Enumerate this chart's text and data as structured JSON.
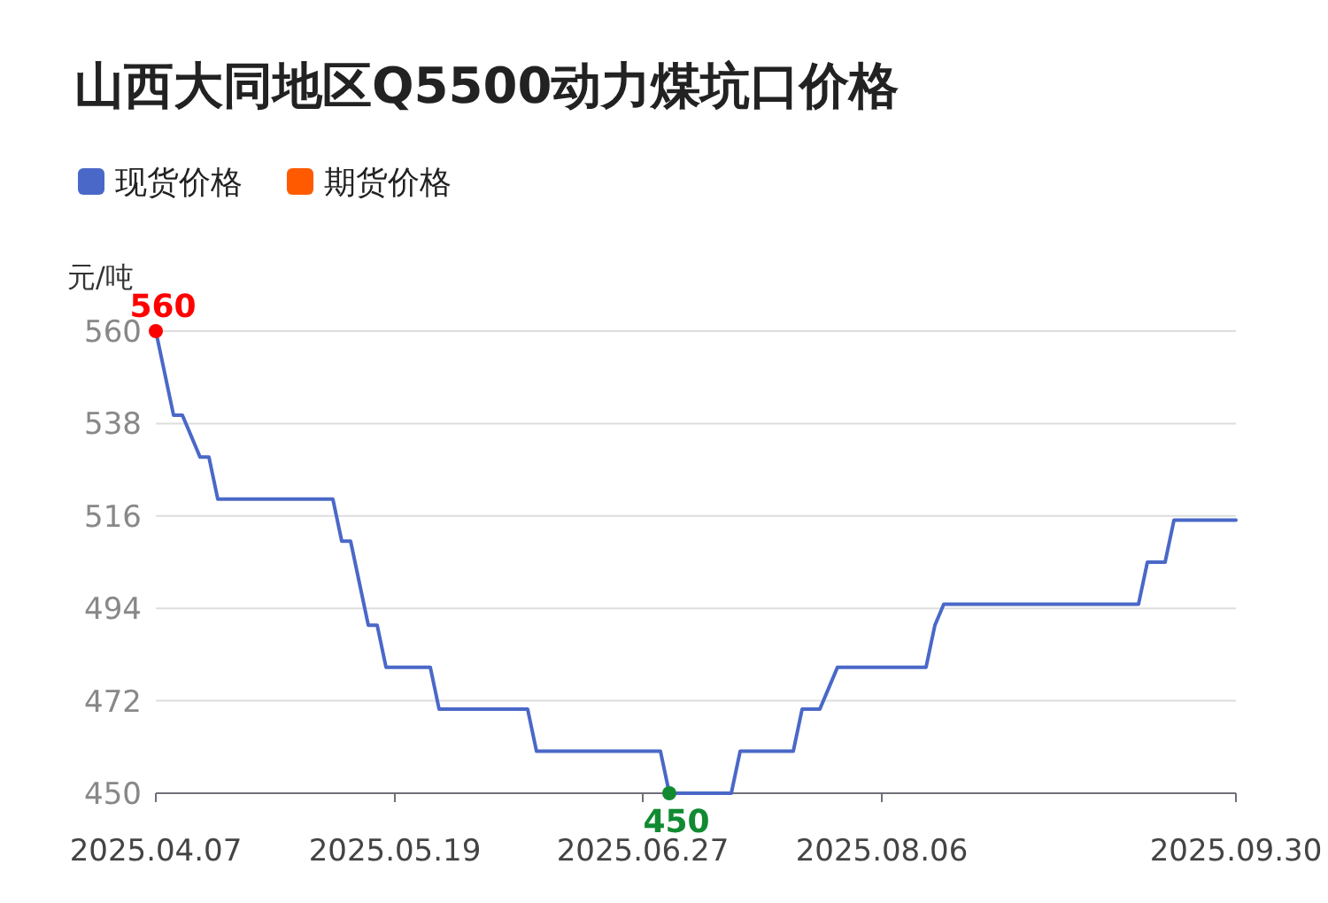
{
  "chart_data": {
    "type": "line",
    "title": "山西大同地区Q5500动力煤坑口价格",
    "ylabel": "元/吨",
    "categories": [
      "2025.04.07",
      null,
      null,
      null,
      null,
      null,
      null,
      null,
      null,
      null,
      null,
      null,
      null,
      null,
      null,
      null,
      null,
      null,
      null,
      null,
      null,
      null,
      null,
      null,
      null,
      null,
      null,
      "2025.05.19",
      null,
      null,
      null,
      null,
      null,
      null,
      null,
      null,
      null,
      null,
      null,
      null,
      null,
      null,
      null,
      null,
      null,
      null,
      null,
      null,
      null,
      null,
      null,
      null,
      null,
      null,
      null,
      "2025.06.27",
      null,
      null,
      null,
      null,
      null,
      null,
      null,
      null,
      null,
      null,
      null,
      null,
      null,
      null,
      null,
      null,
      null,
      null,
      null,
      null,
      null,
      null,
      null,
      null,
      null,
      null,
      "2025.08.06",
      null,
      null,
      null,
      null,
      null,
      null,
      null,
      null,
      null,
      null,
      null,
      null,
      null,
      null,
      null,
      null,
      null,
      null,
      null,
      null,
      null,
      null,
      null,
      null,
      null,
      null,
      null,
      null,
      null,
      null,
      null,
      null,
      null,
      null,
      null,
      null,
      null,
      null,
      null,
      "2025.09.30"
    ],
    "series": [
      {
        "name": "现货价格",
        "color": "#4a68c8",
        "values": [
          560,
          550,
          540,
          540,
          535,
          530,
          530,
          520,
          520,
          520,
          520,
          520,
          520,
          520,
          520,
          520,
          520,
          520,
          520,
          520,
          520,
          510,
          510,
          500,
          490,
          490,
          480,
          480,
          480,
          480,
          480,
          480,
          470,
          470,
          470,
          470,
          470,
          470,
          470,
          470,
          470,
          470,
          470,
          460,
          460,
          460,
          460,
          460,
          460,
          460,
          460,
          460,
          460,
          460,
          460,
          460,
          460,
          460,
          450,
          450,
          450,
          450,
          450,
          450,
          450,
          450,
          460,
          460,
          460,
          460,
          460,
          460,
          460,
          470,
          470,
          470,
          475,
          480,
          480,
          480,
          480,
          480,
          480,
          480,
          480,
          480,
          480,
          480,
          490,
          495,
          495,
          495,
          495,
          495,
          495,
          495,
          495,
          495,
          495,
          495,
          495,
          495,
          495,
          495,
          495,
          495,
          495,
          495,
          495,
          495,
          495,
          495,
          505,
          505,
          505,
          515,
          515,
          515,
          515,
          515,
          515,
          515,
          515
        ]
      },
      {
        "name": "期货价格",
        "color": "#ff5a00",
        "values": [
          null,
          null,
          null,
          null,
          null,
          null,
          null,
          null,
          null,
          null,
          null,
          null,
          null,
          null,
          null,
          null,
          null,
          null,
          null,
          null,
          null,
          null,
          null,
          null,
          null,
          null,
          null,
          null,
          null,
          null,
          null,
          null,
          null,
          null,
          null,
          null,
          null,
          null,
          null,
          null,
          null,
          null,
          null,
          null,
          null,
          null,
          null,
          null,
          null,
          null,
          null,
          null,
          null,
          null,
          null,
          null,
          null,
          null,
          null,
          null,
          null,
          null,
          null,
          null,
          null,
          null,
          null,
          null,
          null,
          null,
          null,
          null,
          null,
          null,
          null,
          null,
          null,
          null,
          null,
          null,
          null,
          null,
          null,
          null,
          null,
          null,
          null,
          null,
          null,
          null,
          null,
          null,
          null,
          null,
          null,
          null,
          null,
          null,
          null,
          null,
          null,
          null,
          null,
          null,
          null,
          null,
          null,
          null,
          null,
          null,
          null,
          null,
          null,
          null,
          null,
          null,
          null,
          null,
          null,
          null,
          null,
          null,
          null
        ]
      }
    ],
    "ylim": [
      450,
      560
    ],
    "yticks": [
      450,
      472,
      494,
      516,
      538,
      560
    ],
    "annotations": [
      {
        "text": "560",
        "x": "2025.04.07",
        "y": 560
      },
      {
        "text": "450",
        "y": 450
      }
    ],
    "grid": "y",
    "legend": "top left"
  }
}
